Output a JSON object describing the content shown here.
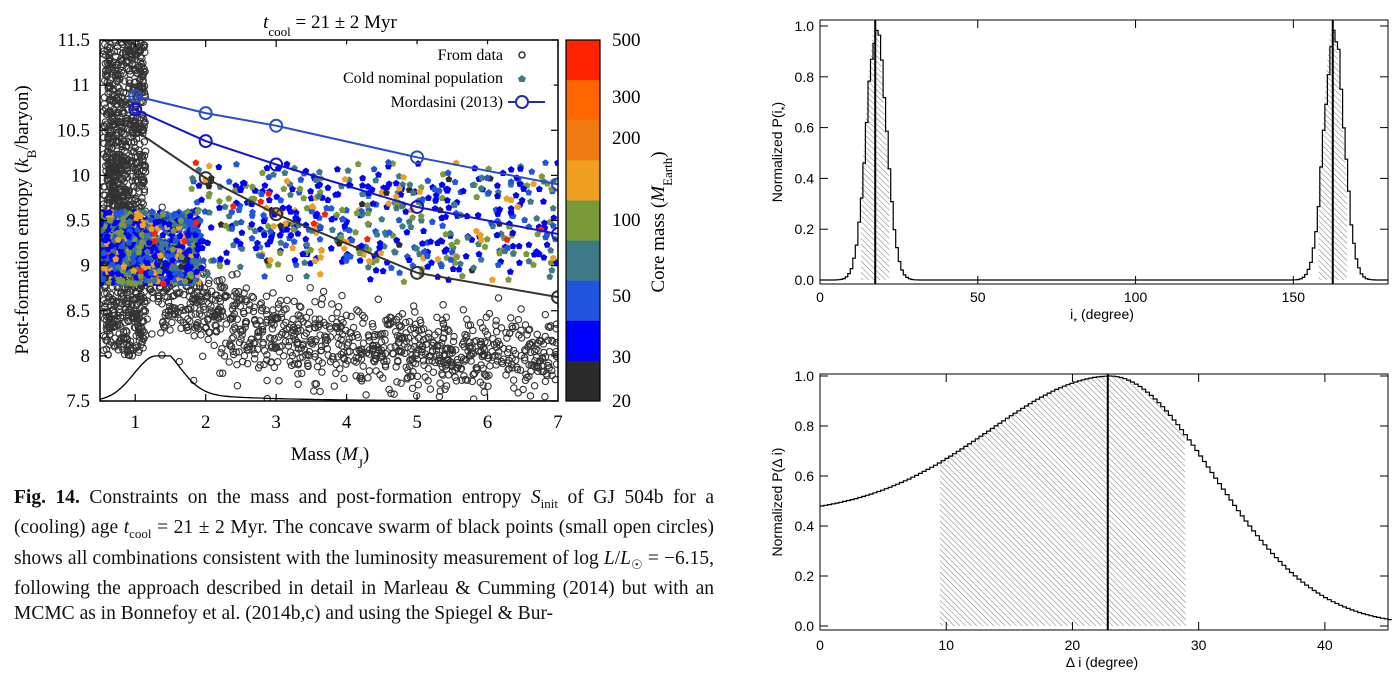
{
  "figure_left": {
    "title": "t_cool = 21 ± 2 Myr",
    "xlabel": "Mass (M_J)",
    "ylabel": "Post-formation entropy (k_B/baryon)",
    "x_ticks": [
      "1",
      "2",
      "3",
      "4",
      "5",
      "6",
      "7"
    ],
    "y_ticks": [
      "7.5",
      "8",
      "8.5",
      "9",
      "9.5",
      "10",
      "10.5",
      "11",
      "11.5"
    ],
    "legend": [
      "From data",
      "Cold nominal population",
      "Mordasini (2013)"
    ],
    "colorbar_label": "Core mass (M_Earth)",
    "colorbar_ticks": [
      "20",
      "30",
      "50",
      "100",
      "200",
      "300",
      "500"
    ],
    "colorbar_colors": [
      "#2b2b2b",
      "#0000ff",
      "#2255dd",
      "#3e7a86",
      "#7a9a3a",
      "#f0a020",
      "#f07a10",
      "#ff6600",
      "#ff2200"
    ]
  },
  "chart_data": [
    {
      "type": "line",
      "title": "t_cool = 21 ± 2 Myr",
      "xlabel": "Mass (M_J)",
      "ylabel": "Post-formation entropy (k_B/baryon)",
      "xlim": [
        0.5,
        7
      ],
      "ylim": [
        7.5,
        11.5
      ],
      "series": [
        {
          "name": "Mordasini (2013)",
          "x": [
            1,
            2,
            3,
            5,
            7
          ],
          "y": [
            10.88,
            10.69,
            10.55,
            10.2,
            9.9
          ]
        },
        {
          "name": "Mordasini (2013)",
          "x": [
            1,
            2,
            3,
            5,
            7
          ],
          "y": [
            10.73,
            10.38,
            10.12,
            9.65,
            9.35
          ]
        },
        {
          "name": "Mordasini (2013)",
          "x": [
            1,
            2,
            3,
            5,
            7
          ],
          "y": [
            10.5,
            9.97,
            9.57,
            8.92,
            8.65
          ]
        }
      ],
      "legend": [
        "From data",
        "Cold nominal population",
        "Mordasini (2013)"
      ]
    },
    {
      "type": "area",
      "xlabel": "i* (degree)",
      "ylabel": "Normalized P(i*)",
      "xlim": [
        0,
        180
      ],
      "ylim": [
        0,
        1
      ],
      "x_ticks": [
        "0",
        "50",
        "100",
        "150"
      ],
      "y_ticks": [
        "0.0",
        "0.2",
        "0.4",
        "0.6",
        "0.8",
        "1.0"
      ],
      "peaks": [
        17.5,
        162.5
      ],
      "shaded_ranges": [
        [
          13,
          22
        ],
        [
          158,
          167
        ]
      ]
    },
    {
      "type": "area",
      "xlabel": "Δ i (degree)",
      "ylabel": "Normalized P(Δ i)",
      "xlim": [
        0,
        45
      ],
      "ylim": [
        0,
        1
      ],
      "x_ticks": [
        "0",
        "10",
        "20",
        "30",
        "40"
      ],
      "y_ticks": [
        "0.0",
        "0.2",
        "0.4",
        "0.6",
        "0.8",
        "1.0"
      ],
      "peak": 22.8,
      "shaded_range": [
        9.5,
        29
      ],
      "value_at_zero": 0.48
    }
  ],
  "caption": {
    "label": "Fig. 14.",
    "text": "Constraints on the mass and post-formation entropy S_init of GJ 504b for a (cooling) age t_cool = 21 ± 2 Myr. The concave swarm of black points (small open circles) shows all combinations consistent with the luminosity measurement of log L/L☉ = −6.15, following the approach described in detail in Marleau & Cumming (2014) but with an MCMC as in Bonnefoy et al. (2014b,c) and using the Spiegel & Bur-"
  }
}
